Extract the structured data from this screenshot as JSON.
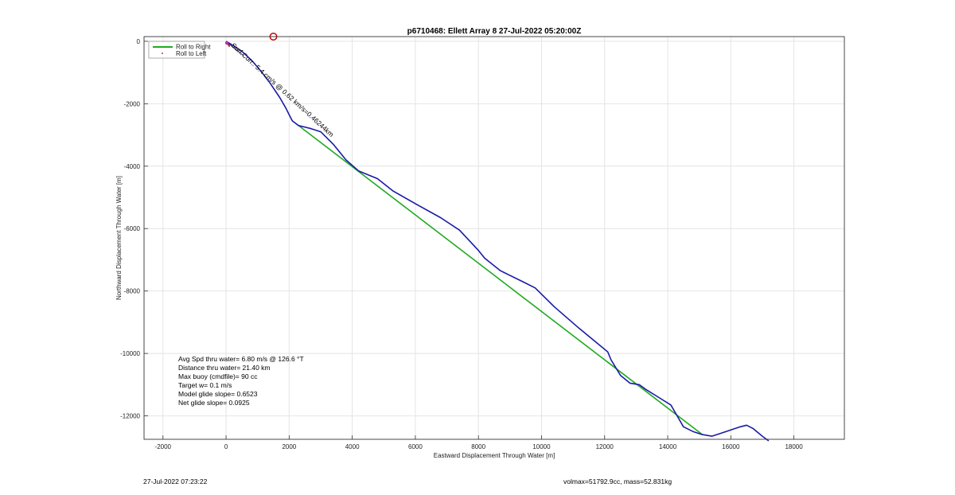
{
  "chart_data": {
    "type": "line",
    "title": "p6710468: Ellett Array 8 27-Jul-2022 05:20:00Z",
    "xlabel": "Eastward Displacement Through Water [m]",
    "ylabel": "Northward Displacement Through Water [m]",
    "xlim": [
      -2600,
      19600
    ],
    "ylim": [
      -12750,
      150
    ],
    "xticks": [
      -2000,
      0,
      2000,
      4000,
      6000,
      8000,
      10000,
      12000,
      14000,
      16000,
      18000
    ],
    "yticks": [
      0,
      -2000,
      -4000,
      -6000,
      -8000,
      -10000,
      -12000
    ],
    "xtick_labels": [
      "-2000",
      "0",
      "2000",
      "4000",
      "6000",
      "8000",
      "10000",
      "12000",
      "14000",
      "16000",
      "18000"
    ],
    "ytick_labels": [
      "0",
      "-2000",
      "-4000",
      "-6000",
      "-8000",
      "-10000",
      "-12000"
    ],
    "grid": true,
    "legend_position": "top-left",
    "series": [
      {
        "name": "Roll to Right",
        "color": "#1faa1f",
        "style": "line",
        "x": [
          2300,
          15100
        ],
        "y": [
          -2700,
          -12600
        ]
      },
      {
        "name": "Roll to Left",
        "color": "#cc3333",
        "style": "points",
        "x": [
          20,
          40,
          60,
          80,
          100
        ],
        "y": [
          -30,
          -60,
          -90,
          -120,
          -150
        ]
      },
      {
        "color": "#1a1aa8",
        "style": "line",
        "x": [
          0,
          200,
          500,
          800,
          1100,
          1400,
          1700,
          1900,
          2000,
          2100,
          2300,
          2700,
          3000,
          3400,
          3800,
          4200,
          4800,
          5300,
          6000,
          6800,
          7400,
          8000,
          8200,
          8700,
          9400,
          9800,
          10400,
          11200,
          11800,
          12100,
          12200,
          12500,
          12800,
          13100,
          13300,
          13700,
          14100,
          14300,
          14500,
          14800,
          15100,
          15400,
          15700,
          16000,
          16300,
          16500,
          16700,
          17000,
          17200
        ],
        "y": [
          0,
          -120,
          -320,
          -600,
          -950,
          -1350,
          -1800,
          -2150,
          -2350,
          -2550,
          -2700,
          -2800,
          -2900,
          -3300,
          -3800,
          -4150,
          -4400,
          -4800,
          -5200,
          -5650,
          -6050,
          -6700,
          -6950,
          -7350,
          -7700,
          -7900,
          -8500,
          -9200,
          -9700,
          -9950,
          -10200,
          -10700,
          -10950,
          -11000,
          -11150,
          -11400,
          -11650,
          -12000,
          -12350,
          -12500,
          -12600,
          -12650,
          -12550,
          -12450,
          -12350,
          -12300,
          -12400,
          -12650,
          -12800
        ]
      }
    ],
    "marker": {
      "x": 1500,
      "y": 150,
      "color": "#cc0000"
    },
    "annotations": [
      "Avg Spd thru water=  6.80 m/s @ 126.6 °T",
      "Distance thru water= 21.40 km",
      "Max buoy (cmdfile)= 90 cc",
      "Target w= 0.1 m/s",
      "Model glide slope= 0.6523",
      "Net glide slope= 0.0925"
    ],
    "dive_label": "Surf.Curr.: 5.4 cm/s @ 0.62 km/s=0.46244km"
  },
  "footer": {
    "timestamp": "27-Jul-2022 07:23:22",
    "volmax_mass": "volmax=51792.9cc, mass=52.831kg"
  }
}
